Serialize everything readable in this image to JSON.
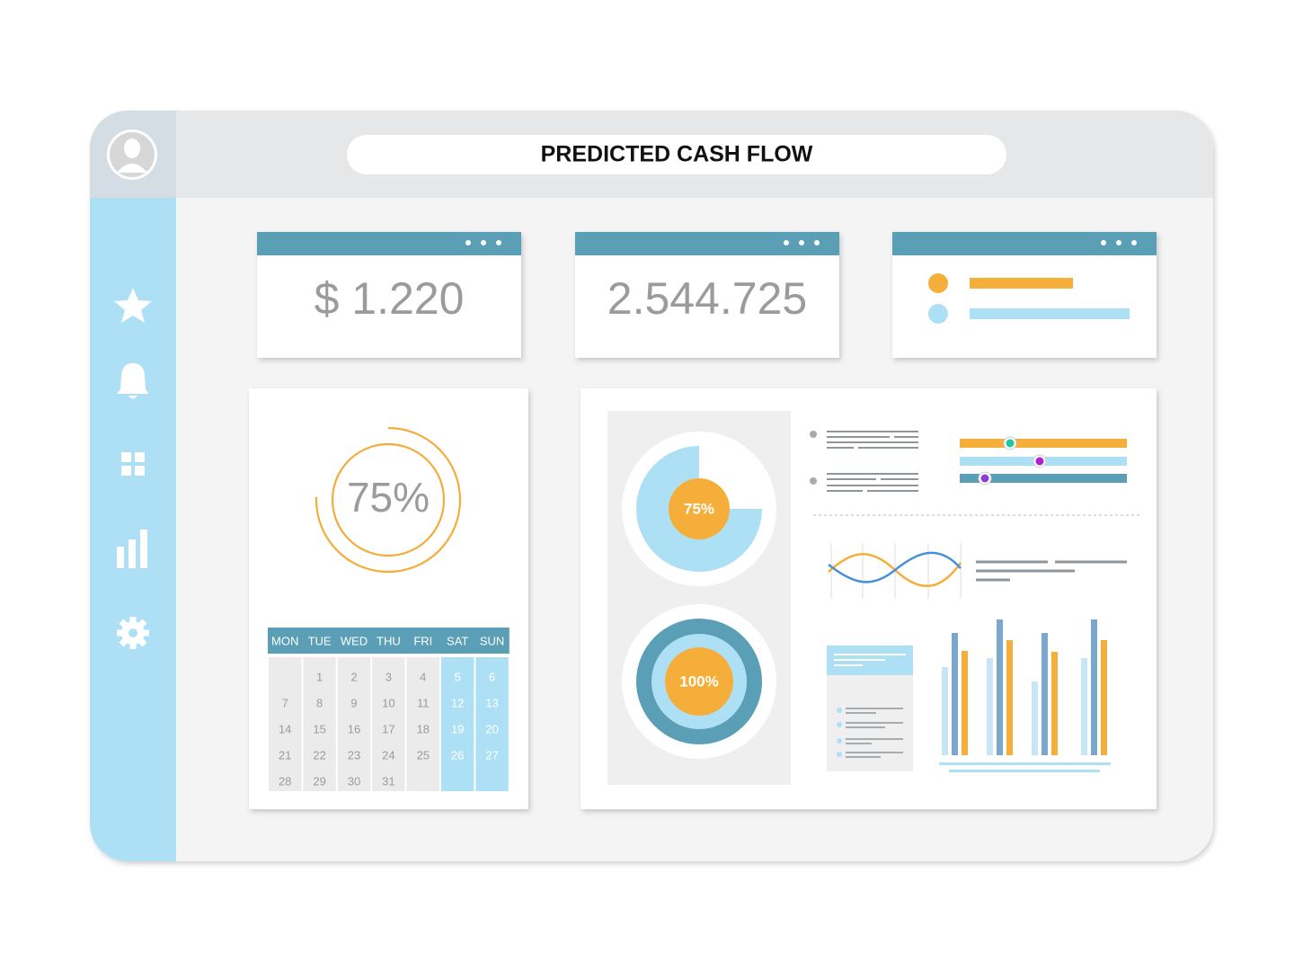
{
  "header": {
    "title": "PREDICTED CASH FLOW"
  },
  "cards": [
    {
      "value": "$ 1.220"
    },
    {
      "value": "2.544.725"
    }
  ],
  "gauge": {
    "label": "75%"
  },
  "calendar": {
    "weekdays": [
      "MON",
      "TUE",
      "WED",
      "THU",
      "FRI",
      "SAT",
      "SUN"
    ],
    "weeks": [
      [
        null,
        1,
        2,
        3,
        4,
        5,
        6
      ],
      [
        7,
        8,
        9,
        10,
        11,
        12,
        13
      ],
      [
        14,
        15,
        16,
        17,
        18,
        19,
        20
      ],
      [
        21,
        22,
        23,
        24,
        25,
        26,
        27
      ],
      [
        28,
        29,
        30,
        31,
        null,
        null,
        null
      ]
    ]
  },
  "donuts": [
    {
      "label": "75%"
    },
    {
      "label": "100%"
    }
  ]
}
